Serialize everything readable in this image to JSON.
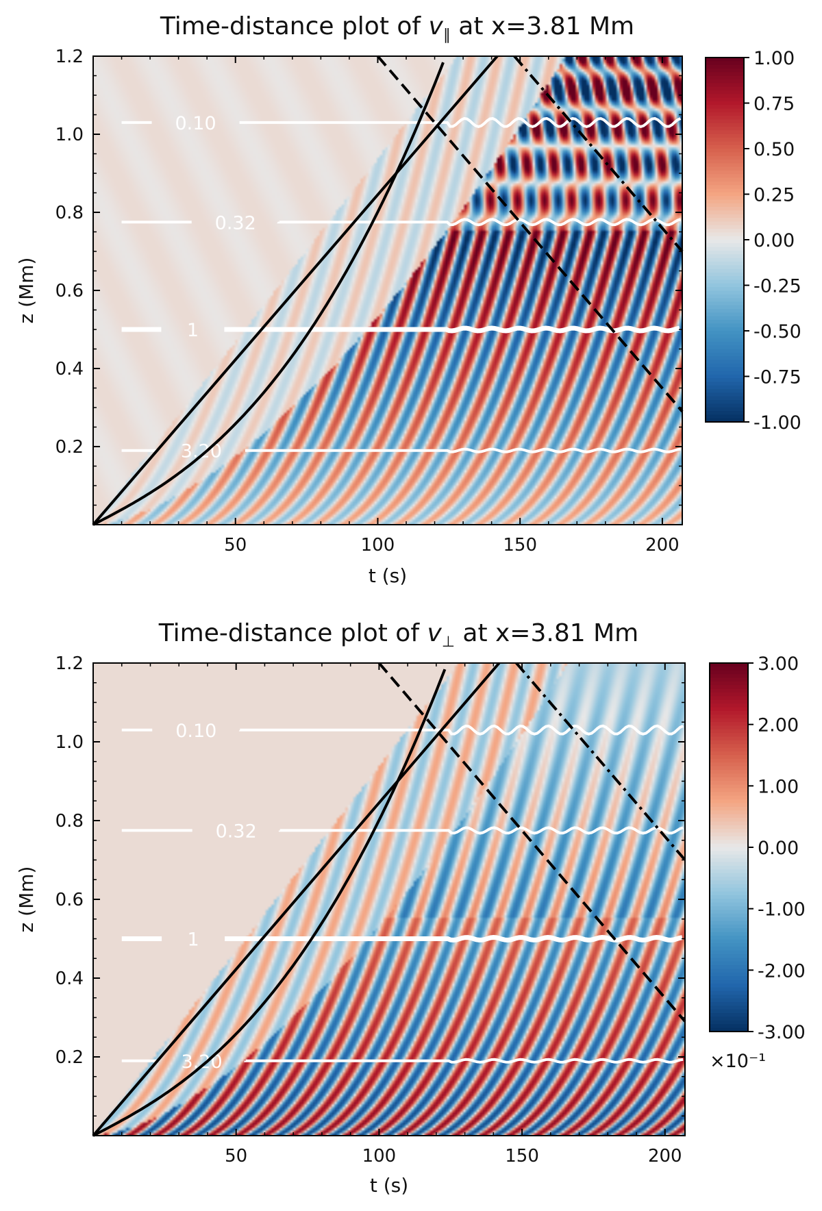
{
  "chart_data": [
    {
      "type": "heatmap",
      "title_prefix": "Time-distance plot of ",
      "title_var": "v",
      "title_sub": "∥",
      "title_suffix": "  at x=3.81 Mm",
      "xlabel": "t (s)",
      "ylabel": "z (Mm)",
      "xlim": [
        0,
        207
      ],
      "ylim": [
        0,
        1.2
      ],
      "xticks": [
        50,
        100,
        150,
        200
      ],
      "xtick_labels": [
        "50",
        "100",
        "150",
        "200"
      ],
      "yticks": [
        0.2,
        0.4,
        0.6,
        0.8,
        1.0,
        1.2
      ],
      "ytick_labels": [
        "0.2",
        "0.4",
        "0.6",
        "0.8",
        "1.0",
        "1.2"
      ],
      "colorbar": {
        "min": -1.0,
        "max": 1.0,
        "ticks": [
          1.0,
          0.75,
          0.5,
          0.25,
          0.0,
          -0.25,
          -0.5,
          -0.75,
          -1.0
        ],
        "tick_labels": [
          "1.00",
          "0.75",
          "0.50",
          "0.25",
          "0.00",
          "-0.25",
          "-0.50",
          "-0.75",
          "-1.00"
        ],
        "multiplier": ""
      },
      "contours": [
        {
          "label": "0.10",
          "z": 1.03
        },
        {
          "label": "0.32",
          "z": 0.775
        },
        {
          "label": "1",
          "z": 0.5
        },
        {
          "label": "3.20",
          "z": 0.19
        }
      ],
      "cusp_point": {
        "t": 122,
        "z": 1.04
      },
      "dashed_line": {
        "t0": 100,
        "z0": 1.2,
        "t1": 207,
        "z1": 0.29
      },
      "dashdot_line": {
        "t0": 148,
        "z0": 1.2,
        "t1": 207,
        "z1": 0.7
      }
    },
    {
      "type": "heatmap",
      "title_prefix": "Time-distance plot of ",
      "title_var": "v",
      "title_sub": "⊥",
      "title_suffix": "  at x=3.81 Mm",
      "xlabel": "t (s)",
      "ylabel": "z (Mm)",
      "xlim": [
        0,
        207
      ],
      "ylim": [
        0,
        1.2
      ],
      "xticks": [
        50,
        100,
        150,
        200
      ],
      "xtick_labels": [
        "50",
        "100",
        "150",
        "200"
      ],
      "yticks": [
        0.2,
        0.4,
        0.6,
        0.8,
        1.0,
        1.2
      ],
      "ytick_labels": [
        "0.2",
        "0.4",
        "0.6",
        "0.8",
        "1.0",
        "1.2"
      ],
      "colorbar": {
        "min": -3.0,
        "max": 3.0,
        "ticks": [
          3.0,
          2.0,
          1.0,
          0.0,
          -1.0,
          -2.0,
          -3.0
        ],
        "tick_labels": [
          "3.00",
          "2.00",
          "1.00",
          "0.00",
          "-1.00",
          "-2.00",
          "-3.00"
        ],
        "multiplier": "×10⁻¹"
      },
      "contours": [
        {
          "label": "0.10",
          "z": 1.03
        },
        {
          "label": "0.32",
          "z": 0.775
        },
        {
          "label": "1",
          "z": 0.5
        },
        {
          "label": "3.20",
          "z": 0.19
        }
      ],
      "cusp_point": {
        "t": 122,
        "z": 1.04
      },
      "dashed_line": {
        "t0": 100,
        "z0": 1.2,
        "t1": 207,
        "z1": 0.29
      },
      "dashdot_line": {
        "t0": 148,
        "z0": 1.2,
        "t1": 207,
        "z1": 0.7
      }
    }
  ]
}
